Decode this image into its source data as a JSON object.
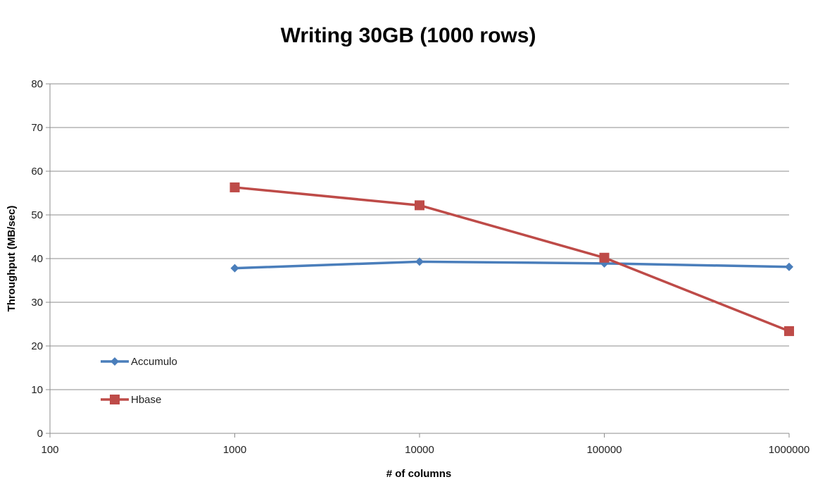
{
  "chart_data": {
    "type": "line",
    "title": "Writing 30GB (1000 rows)",
    "xlabel": "# of columns",
    "ylabel": "Throughput (MB/sec)",
    "xscale": "log",
    "xlim": [
      100,
      1000000
    ],
    "ylim": [
      0,
      80
    ],
    "x_ticks": [
      "100",
      "1000",
      "10000",
      "100000",
      "1000000"
    ],
    "y_ticks": [
      "0",
      "10",
      "20",
      "30",
      "40",
      "50",
      "60",
      "70",
      "80"
    ],
    "grid": "horizontal",
    "legend_position": "bottom-left",
    "x": [
      1000,
      10000,
      100000,
      1000000
    ],
    "series": [
      {
        "name": "Accumulo",
        "color": "#4a7ebb",
        "marker": "diamond",
        "values": [
          37.8,
          39.3,
          38.9,
          38.1
        ]
      },
      {
        "name": "Hbase",
        "color": "#be4b48",
        "marker": "square",
        "values": [
          56.3,
          52.2,
          40.2,
          23.4
        ]
      }
    ]
  }
}
